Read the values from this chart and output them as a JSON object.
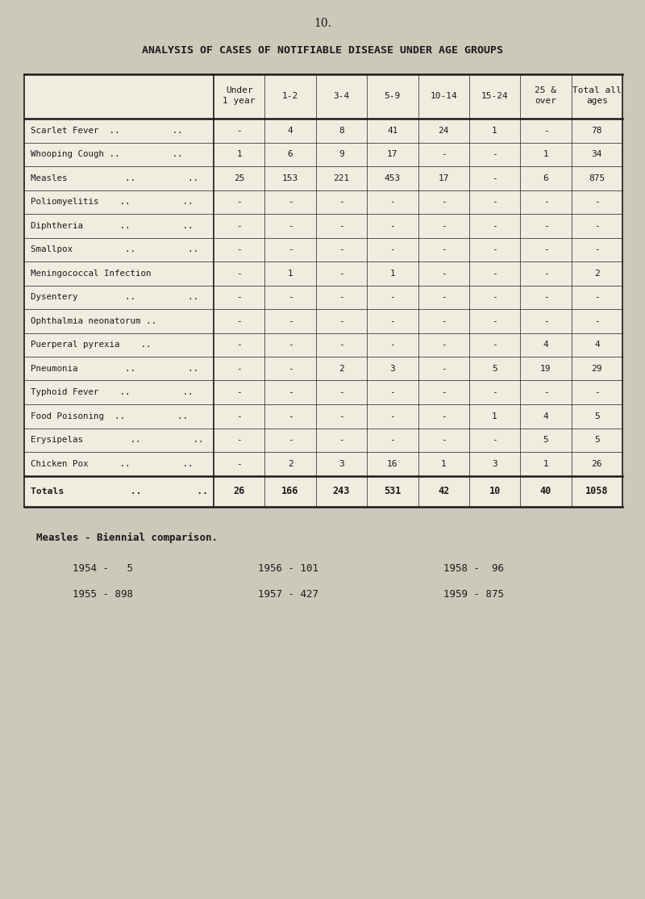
{
  "page_number": "10.",
  "title": "ANALYSIS OF CASES OF NOTIFIABLE DISEASE UNDER AGE GROUPS",
  "bg_color": "#ccc9bb",
  "table_bg": "#e8e4d8",
  "text_color": "#1a1a1a",
  "col_headers": [
    "Under\n1 year",
    "1-2",
    "3-4",
    "5-9",
    "10-14",
    "15-24",
    "25 &\nover",
    "Total all\nages"
  ],
  "rows": [
    {
      "disease": "Scarlet Fever  ..          ..",
      "values": [
        "-",
        "4",
        "8",
        "41",
        "24",
        "1",
        "-",
        "78"
      ]
    },
    {
      "disease": "Whooping Cough ..          ..",
      "values": [
        "1",
        "6",
        "9",
        "17",
        "-",
        "-",
        "1",
        "34"
      ]
    },
    {
      "disease": "Measles           ..          ..",
      "values": [
        "25",
        "153",
        "221",
        "453",
        "17",
        "-",
        "6",
        "875"
      ]
    },
    {
      "disease": "Poliomyelitis    ..          ..",
      "values": [
        "-",
        "-",
        "-",
        "-",
        "-",
        "-",
        "-",
        "-"
      ]
    },
    {
      "disease": "Diphtheria       ..          ..",
      "values": [
        "-",
        "-",
        "-",
        "-",
        "-",
        "-",
        "-",
        "-"
      ]
    },
    {
      "disease": "Smallpox          ..          ..",
      "values": [
        "-",
        "-",
        "-",
        "-",
        "-",
        "-",
        "-",
        "-"
      ]
    },
    {
      "disease": "Meningococcal Infection",
      "values": [
        "-",
        "1",
        "-",
        "1",
        "-",
        "-",
        "-",
        "2"
      ]
    },
    {
      "disease": "Dysentery         ..          ..",
      "values": [
        "-",
        "-",
        "-",
        "-",
        "-",
        "-",
        "-",
        "-"
      ]
    },
    {
      "disease": "Ophthalmia neonatorum ..",
      "values": [
        "-",
        "-",
        "-",
        "-",
        "-",
        "-",
        "-",
        "-"
      ]
    },
    {
      "disease": "Puerperal pyrexia    ..",
      "values": [
        "-",
        "-",
        "-",
        "-",
        "-",
        "-",
        "4",
        "4"
      ]
    },
    {
      "disease": "Pneumonia         ..          ..",
      "values": [
        "-",
        "-",
        "2",
        "3",
        "-",
        "5",
        "19",
        "29"
      ]
    },
    {
      "disease": "Typhoid Fever    ..          ..",
      "values": [
        "-",
        "-",
        "-",
        "-",
        "-",
        "-",
        "-",
        "-"
      ]
    },
    {
      "disease": "Food Poisoning  ..          ..",
      "values": [
        "-",
        "-",
        "-",
        "-",
        "-",
        "1",
        "4",
        "5"
      ]
    },
    {
      "disease": "Erysipelas         ..          ..",
      "values": [
        "-",
        "-",
        "-",
        "-",
        "-",
        "-",
        "5",
        "5"
      ]
    },
    {
      "disease": "Chicken Pox      ..          ..",
      "values": [
        "-",
        "2",
        "3",
        "16",
        "1",
        "3",
        "1",
        "26"
      ]
    }
  ],
  "totals_label": "Totals            ..          ..",
  "totals_values": [
    "26",
    "166",
    "243",
    "531",
    "42",
    "10",
    "40",
    "1058"
  ],
  "biennial_title": "Measles - Biennial comparison.",
  "biennial_col1": [
    "1954 -   5",
    "1955 - 898"
  ],
  "biennial_col2": [
    "1956 - 101",
    "1957 - 427"
  ],
  "biennial_col3": [
    "1958 -  96",
    "1959 - 875"
  ],
  "figw": 8.0,
  "figh": 11.14,
  "dpi": 100
}
